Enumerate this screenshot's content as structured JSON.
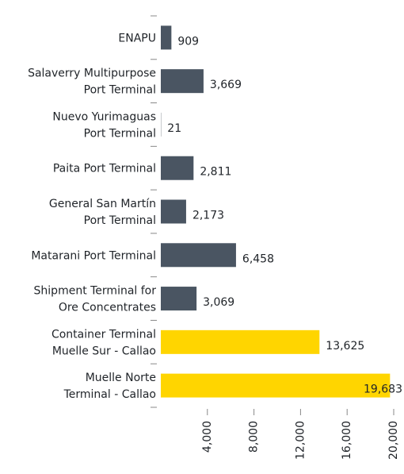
{
  "chart_data": {
    "type": "bar",
    "orientation": "horizontal",
    "categories": [
      "ENAPU",
      "Salaverry Multipurpose\nPort Terminal",
      "Nuevo Yurimaguas\nPort Terminal",
      "Paita Port Terminal",
      "General San Martín\nPort Terminal",
      "Matarani Port Terminal",
      "Shipment Terminal for\nOre Concentrates",
      "Container Terminal\nMuelle Sur - Callao",
      "Muelle Norte\nTerminal - Callao"
    ],
    "values": [
      909,
      3669,
      21,
      2811,
      2173,
      6458,
      3069,
      13625,
      19683
    ],
    "value_labels": [
      "909",
      "3,669",
      "21",
      "2,811",
      "2,173",
      "6,458",
      "3,069",
      "13,625",
      "19,683"
    ],
    "colors": [
      "#4a5562",
      "#4a5562",
      "#4a5562",
      "#4a5562",
      "#4a5562",
      "#4a5562",
      "#4a5562",
      "#ffd500",
      "#ffd500"
    ],
    "xlim": [
      0,
      20000
    ],
    "xticks": [
      {
        "value": 4000,
        "label": "4,000"
      },
      {
        "value": 8000,
        "label": "8,000"
      },
      {
        "value": 12000,
        "label": "12,000"
      },
      {
        "value": 16000,
        "label": "16,000"
      },
      {
        "value": 20000,
        "label": "20,000"
      }
    ]
  }
}
